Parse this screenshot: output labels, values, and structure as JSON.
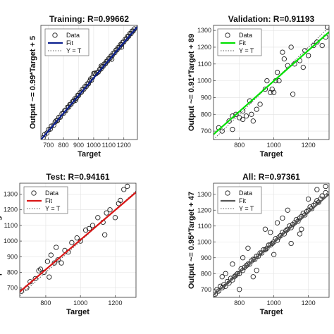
{
  "chart_data": [
    {
      "type": "scatter",
      "title": "Training: R=0.99662",
      "xlabel": "Target",
      "ylabel": "Output ~= 0.99*Target + 5",
      "xlim": [
        650,
        1290
      ],
      "ylim": [
        650,
        1290
      ],
      "xticks": [
        700,
        800,
        900,
        1000,
        1100,
        1200
      ],
      "yticks": [],
      "fit": {
        "slope": 0.99,
        "intercept": 5
      },
      "fit_color": "#0b1f8f",
      "legend": [
        "Data",
        "Fit",
        "Y = T"
      ],
      "legend_position": "top-left",
      "series": [
        {
          "name": "Data",
          "x": [
            665,
            675,
            690,
            700,
            712,
            720,
            735,
            745,
            752,
            760,
            770,
            778,
            790,
            800,
            808,
            815,
            825,
            835,
            842,
            850,
            860,
            868,
            875,
            885,
            893,
            900,
            910,
            918,
            925,
            935,
            942,
            950,
            958,
            965,
            975,
            985,
            992,
            1000,
            1008,
            1015,
            1022,
            1030,
            1040,
            1048,
            1055,
            1062,
            1070,
            1078,
            1085,
            1092,
            1100,
            1108,
            1115,
            1122,
            1130,
            1140,
            1148,
            1155,
            1162,
            1170,
            1178,
            1185,
            1192,
            1200,
            1210,
            1218,
            1225,
            1232,
            1240,
            1248,
            1255,
            1262,
            1270,
            1120,
            1050,
            980,
            880,
            1185
          ],
          "y": [
            660,
            678,
            686,
            705,
            708,
            725,
            730,
            748,
            755,
            756,
            775,
            775,
            795,
            797,
            812,
            812,
            830,
            832,
            846,
            848,
            862,
            866,
            878,
            882,
            897,
            897,
            912,
            915,
            930,
            932,
            946,
            947,
            962,
            962,
            978,
            982,
            998,
            1020,
            1022,
            1018,
            1025,
            1028,
            1043,
            1045,
            1058,
            1060,
            1073,
            1075,
            1088,
            1090,
            1103,
            1105,
            1118,
            1120,
            1133,
            1137,
            1151,
            1153,
            1165,
            1167,
            1182,
            1182,
            1195,
            1197,
            1212,
            1215,
            1228,
            1229,
            1244,
            1244,
            1258,
            1258,
            1270,
            1100,
            1062,
            990,
            870,
            1168
          ]
        }
      ]
    },
    {
      "type": "scatter",
      "title": "Validation: R=0.91193",
      "xlabel": "Target",
      "ylabel": "Output ~= 0.91*Target + 89",
      "xlim": [
        650,
        1320
      ],
      "ylim": [
        650,
        1330
      ],
      "xticks": [
        800,
        1000,
        1200
      ],
      "yticks": [
        700,
        800,
        900,
        1000,
        1100,
        1200,
        1300
      ],
      "fit": {
        "slope": 0.91,
        "intercept": 89
      },
      "fit_color": "#00e000",
      "legend": [
        "Data",
        "Fit",
        "Y = T"
      ],
      "legend_position": "top-left",
      "series": [
        {
          "name": "Data",
          "x": [
            680,
            700,
            740,
            760,
            780,
            800,
            820,
            840,
            860,
            870,
            880,
            900,
            920,
            950,
            960,
            980,
            1000,
            1010,
            1020,
            1030,
            1050,
            1060,
            1080,
            1100,
            1120,
            1150,
            1180,
            1200,
            1230,
            1250,
            1280,
            1300,
            1310,
            760,
            820,
            990,
            1110,
            1170
          ],
          "y": [
            720,
            700,
            760,
            790,
            800,
            780,
            770,
            790,
            880,
            800,
            760,
            830,
            860,
            950,
            1000,
            930,
            930,
            1000,
            1050,
            1000,
            1170,
            1130,
            1090,
            1200,
            1100,
            1120,
            1180,
            1150,
            1210,
            1230,
            1210,
            1260,
            1320,
            710,
            820,
            950,
            920,
            1080
          ]
        }
      ]
    },
    {
      "type": "scatter",
      "title": "Test: R=0.94161",
      "xlabel": "Target",
      "ylabel": "Output ~= 0.95*Target + 58",
      "xlim": [
        650,
        1320
      ],
      "ylim": [
        640,
        1370
      ],
      "xticks": [
        800,
        1000,
        1200
      ],
      "yticks": [
        700,
        800,
        900,
        1000,
        1100,
        1200,
        1300
      ],
      "fit": {
        "slope": 0.95,
        "intercept": 58
      },
      "fit_color": "#d91616",
      "legend": [
        "Data",
        "Fit",
        "Y = T"
      ],
      "legend_position": "top-left",
      "series": [
        {
          "name": "Data",
          "x": [
            660,
            690,
            710,
            740,
            760,
            770,
            790,
            810,
            830,
            850,
            870,
            890,
            910,
            930,
            950,
            980,
            1000,
            1030,
            1050,
            1070,
            1100,
            1130,
            1150,
            1170,
            1200,
            1220,
            1250,
            1270,
            860,
            820,
            1140,
            1230
          ],
          "y": [
            680,
            700,
            740,
            760,
            810,
            820,
            800,
            870,
            910,
            860,
            880,
            860,
            940,
            930,
            990,
            1020,
            1000,
            1070,
            1080,
            1100,
            1150,
            1120,
            1180,
            1200,
            1150,
            1240,
            1330,
            1350,
            960,
            770,
            1040,
            1260
          ]
        }
      ]
    },
    {
      "type": "scatter",
      "title": "All: R=0.97361",
      "xlabel": "Target",
      "ylabel": "Output ~= 0.95*Target + 47",
      "xlim": [
        650,
        1320
      ],
      "ylim": [
        650,
        1370
      ],
      "xticks": [
        800,
        1000,
        1200
      ],
      "yticks": [
        700,
        800,
        900,
        1000,
        1100,
        1200,
        1300
      ],
      "fit": {
        "slope": 0.95,
        "intercept": 47
      },
      "fit_color": "#555555",
      "legend": [
        "Data",
        "Fit",
        "Y = T"
      ],
      "legend_position": "top-left",
      "series": [
        {
          "name": "Data",
          "x": [
            660,
            670,
            680,
            690,
            700,
            710,
            720,
            730,
            740,
            750,
            760,
            770,
            780,
            790,
            800,
            810,
            820,
            830,
            840,
            850,
            860,
            870,
            880,
            890,
            900,
            910,
            920,
            930,
            940,
            950,
            960,
            970,
            980,
            990,
            1000,
            1010,
            1020,
            1030,
            1040,
            1050,
            1060,
            1070,
            1080,
            1090,
            1100,
            1110,
            1120,
            1130,
            1140,
            1150,
            1160,
            1170,
            1180,
            1190,
            1200,
            1210,
            1220,
            1230,
            1240,
            1250,
            1260,
            1270,
            1280,
            1300,
            700,
            760,
            800,
            850,
            900,
            950,
            1000,
            1050,
            1100,
            1150,
            1200,
            1250,
            720,
            880,
            1020,
            1160,
            1300,
            820,
            980,
            1080
          ],
          "y": [
            670,
            700,
            690,
            720,
            710,
            730,
            720,
            750,
            740,
            770,
            760,
            780,
            790,
            800,
            800,
            830,
            820,
            840,
            850,
            860,
            860,
            880,
            890,
            890,
            910,
            910,
            930,
            930,
            950,
            950,
            960,
            980,
            980,
            990,
            1000,
            1020,
            1010,
            1030,
            1040,
            1060,
            1050,
            1070,
            1080,
            1100,
            1090,
            1110,
            1120,
            1140,
            1130,
            1150,
            1160,
            1180,
            1170,
            1190,
            1200,
            1220,
            1210,
            1230,
            1240,
            1260,
            1250,
            1270,
            1290,
            1310,
            780,
            860,
            700,
            960,
            820,
            1080,
            920,
            1150,
            990,
            1050,
            1270,
            1330,
            800,
            780,
            1120,
            1080,
            1350,
            900,
            1060,
            1200
          ]
        }
      ]
    }
  ]
}
